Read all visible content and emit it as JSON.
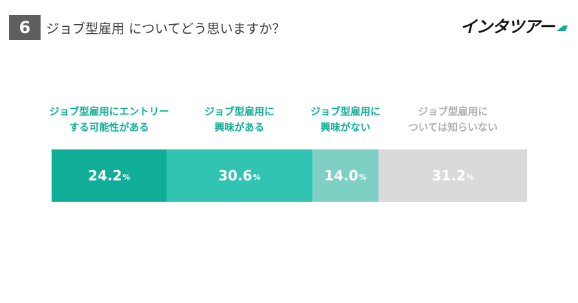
{
  "header": {
    "question_number": "6",
    "question_text": "ジョブ型雇用 についてどう思いますか？",
    "logo_text": "インタツアー"
  },
  "chart_data": {
    "type": "bar",
    "orientation": "horizontal-stacked",
    "unit": "%",
    "series": [
      {
        "name": "ジョブ型雇用にエントリーする可能性がある",
        "label_lines": [
          "ジョブ型雇用にエントリー",
          "する可能性がある"
        ],
        "value": 24.2,
        "display": "24.2",
        "color": "#10ae99",
        "label_color": "#10ae99"
      },
      {
        "name": "ジョブ型雇用に興味がある",
        "label_lines": [
          "ジョブ型雇用に",
          "興味がある"
        ],
        "value": 30.6,
        "display": "30.6",
        "color": "#32c4b3",
        "label_color": "#10ae99"
      },
      {
        "name": "ジョブ型雇用に興味がない",
        "label_lines": [
          "ジョブ型雇用に",
          "興味がない"
        ],
        "value": 14.0,
        "display": "14.0",
        "color": "#7ed0c4",
        "label_color": "#10ae99"
      },
      {
        "name": "ジョブ型雇用については知らいない",
        "label_lines": [
          "ジョブ型雇用に",
          "ついては知らいない"
        ],
        "value": 31.2,
        "display": "31.2",
        "color": "#dadada",
        "label_color": "#b0b0b0"
      }
    ]
  }
}
